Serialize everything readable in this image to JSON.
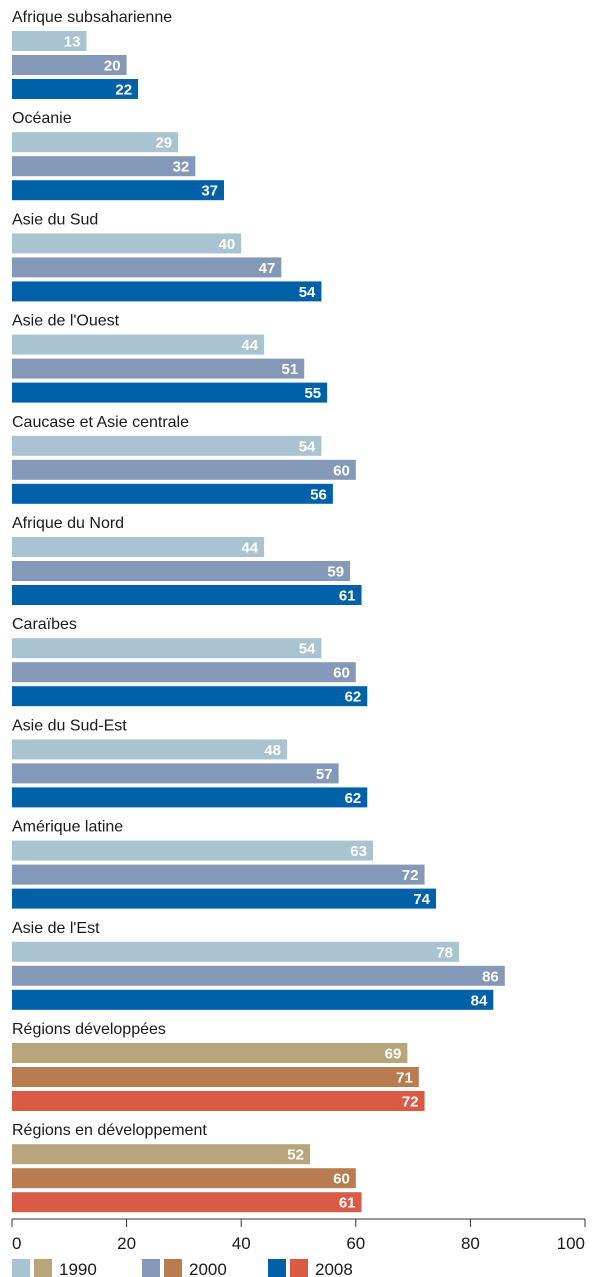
{
  "chart_data": {
    "type": "bar",
    "orientation": "horizontal",
    "title": "",
    "xlim": [
      0,
      100
    ],
    "x_ticks": [
      0,
      20,
      40,
      60,
      80,
      100
    ],
    "grid": false,
    "legend_position": "bottom-left",
    "series_years": [
      "1990",
      "2000",
      "2008"
    ],
    "colors": {
      "regions": [
        "#a9c3d1",
        "#8499b7",
        "#0061a8"
      ],
      "aggregates": [
        "#b8a57c",
        "#b97c50",
        "#d95a45"
      ]
    },
    "groups": [
      {
        "label": "Afrique subsaharienne",
        "palette": "regions",
        "values": [
          13,
          20,
          22
        ]
      },
      {
        "label": "Océanie",
        "palette": "regions",
        "values": [
          29,
          32,
          37
        ]
      },
      {
        "label": "Asie du Sud",
        "palette": "regions",
        "values": [
          40,
          47,
          54
        ]
      },
      {
        "label": "Asie de l'Ouest",
        "palette": "regions",
        "values": [
          44,
          51,
          55
        ]
      },
      {
        "label": "Caucase et Asie centrale",
        "palette": "regions",
        "values": [
          54,
          60,
          56
        ]
      },
      {
        "label": "Afrique du Nord",
        "palette": "regions",
        "values": [
          44,
          59,
          61
        ]
      },
      {
        "label": "Caraïbes",
        "palette": "regions",
        "values": [
          54,
          60,
          62
        ]
      },
      {
        "label": "Asie du Sud-Est",
        "palette": "regions",
        "values": [
          48,
          57,
          62
        ]
      },
      {
        "label": "Amérique latine",
        "palette": "regions",
        "values": [
          63,
          72,
          74
        ]
      },
      {
        "label": "Asie de l'Est",
        "palette": "regions",
        "values": [
          78,
          86,
          84
        ]
      },
      {
        "label": "Régions développées",
        "palette": "aggregates",
        "values": [
          69,
          71,
          72
        ]
      },
      {
        "label": "Régions en développement",
        "palette": "aggregates",
        "values": [
          52,
          60,
          61
        ]
      }
    ]
  }
}
